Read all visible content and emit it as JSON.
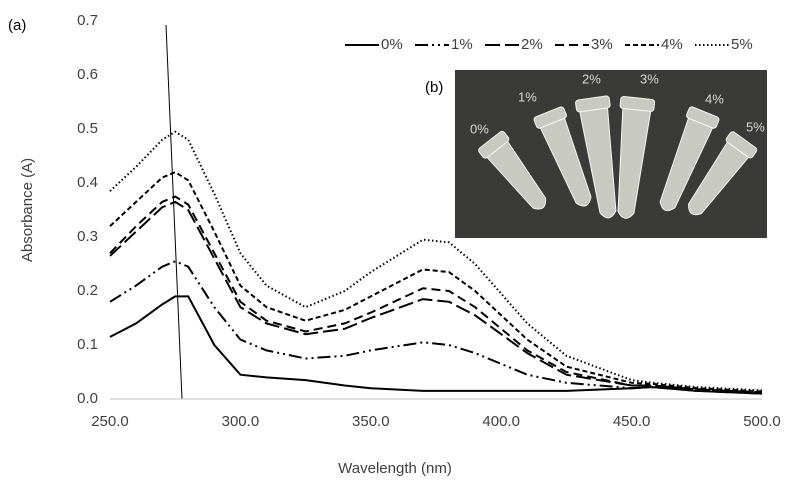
{
  "chart_data": {
    "type": "line",
    "panel_label": "(a)",
    "y_label": "Absorbance (A)",
    "x_label": "Wavelength (nm)",
    "xlim": [
      250,
      500
    ],
    "xticks": [
      {
        "value": 250,
        "label": "250.0"
      },
      {
        "value": 300,
        "label": "300.0"
      },
      {
        "value": 350,
        "label": "350.0"
      },
      {
        "value": 400,
        "label": "400.0"
      },
      {
        "value": 450,
        "label": "450.0"
      },
      {
        "value": 500,
        "label": "500.0"
      }
    ],
    "ylim": [
      0,
      0.7
    ],
    "yticks": [
      {
        "value": 0,
        "label": "0.0"
      },
      0.1,
      0.2,
      0.3,
      0.4,
      0.5,
      0.6,
      0.7
    ],
    "grid": false,
    "legend": "top-right",
    "x": [
      250,
      260,
      270,
      275,
      280,
      290,
      300,
      310,
      325,
      340,
      350,
      370,
      380,
      390,
      400,
      410,
      425,
      450,
      458,
      475,
      500
    ],
    "series": [
      {
        "name": "0%",
        "color": "#000000",
        "style": "solid",
        "values": [
          0.115,
          0.14,
          0.175,
          0.19,
          0.19,
          0.1,
          0.045,
          0.04,
          0.035,
          0.025,
          0.02,
          0.015,
          0.015,
          0.015,
          0.015,
          0.015,
          0.015,
          0.02,
          0.022,
          0.015,
          0.01
        ]
      },
      {
        "name": "1%",
        "color": "#000000",
        "style": "dash-dot-dot",
        "values": [
          0.18,
          0.21,
          0.245,
          0.255,
          0.245,
          0.17,
          0.11,
          0.09,
          0.075,
          0.08,
          0.09,
          0.105,
          0.1,
          0.085,
          0.065,
          0.045,
          0.03,
          0.02,
          0.022,
          0.015,
          0.01
        ]
      },
      {
        "name": "2%",
        "color": "#000000",
        "style": "long-dash",
        "values": [
          0.265,
          0.31,
          0.355,
          0.365,
          0.35,
          0.26,
          0.17,
          0.14,
          0.12,
          0.13,
          0.15,
          0.185,
          0.18,
          0.155,
          0.12,
          0.085,
          0.045,
          0.025,
          0.025,
          0.018,
          0.012
        ]
      },
      {
        "name": "3%",
        "color": "#000000",
        "style": "dash",
        "values": [
          0.27,
          0.32,
          0.365,
          0.375,
          0.36,
          0.27,
          0.18,
          0.145,
          0.125,
          0.14,
          0.16,
          0.205,
          0.2,
          0.17,
          0.13,
          0.09,
          0.05,
          0.025,
          0.025,
          0.018,
          0.012
        ]
      },
      {
        "name": "4%",
        "color": "#000000",
        "style": "short-dash",
        "values": [
          0.32,
          0.365,
          0.41,
          0.42,
          0.405,
          0.31,
          0.21,
          0.17,
          0.145,
          0.165,
          0.19,
          0.24,
          0.235,
          0.2,
          0.155,
          0.11,
          0.06,
          0.03,
          0.028,
          0.02,
          0.014
        ]
      },
      {
        "name": "5%",
        "color": "#000000",
        "style": "dot",
        "values": [
          0.385,
          0.43,
          0.48,
          0.495,
          0.48,
          0.38,
          0.27,
          0.21,
          0.17,
          0.2,
          0.235,
          0.295,
          0.29,
          0.25,
          0.195,
          0.14,
          0.08,
          0.035,
          0.03,
          0.022,
          0.016
        ]
      }
    ],
    "inset": {
      "label": "(b)",
      "tube_labels": [
        "0%",
        "1%",
        "2%",
        "3%",
        "4%",
        "5%"
      ]
    }
  }
}
